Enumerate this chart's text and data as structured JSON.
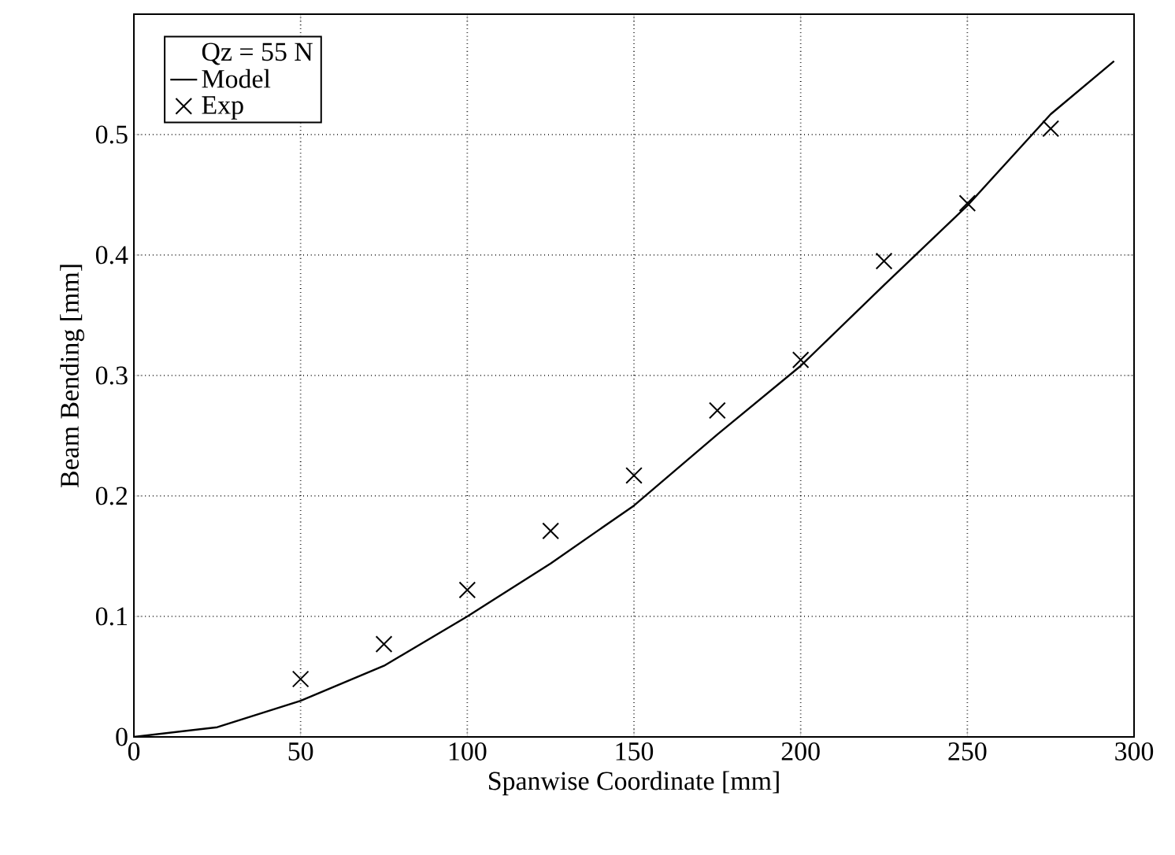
{
  "chart_data": {
    "type": "line",
    "xlabel": "Spanwise Coordinate [mm]",
    "ylabel": "Beam Bending [mm]",
    "legend_title": "Qz = 55 N",
    "xlim": [
      0,
      300
    ],
    "ylim": [
      0,
      0.6
    ],
    "xticks": [
      0,
      50,
      100,
      150,
      200,
      250,
      300
    ],
    "yticks": [
      0,
      0.1,
      0.2,
      0.3,
      0.4,
      0.5
    ],
    "grid": true,
    "legend": "top left",
    "series": [
      {
        "name": "Model",
        "color": "#000000",
        "marker": "none",
        "line_style": "solid",
        "x": [
          0,
          25,
          50,
          75,
          100,
          125,
          150,
          175,
          200,
          225,
          250,
          275,
          294
        ],
        "values": [
          0,
          0.008,
          0.03,
          0.059,
          0.1,
          0.144,
          0.192,
          0.251,
          0.308,
          0.375,
          0.441,
          0.517,
          0.561
        ]
      },
      {
        "name": "Exp",
        "type": "scatter",
        "color": "#000000",
        "marker": "cross",
        "x": [
          50,
          75,
          100,
          125,
          150,
          175,
          200,
          225,
          250,
          275
        ],
        "values": [
          0.048,
          0.077,
          0.122,
          0.171,
          0.217,
          0.271,
          0.313,
          0.395,
          0.443,
          0.505
        ]
      }
    ]
  }
}
